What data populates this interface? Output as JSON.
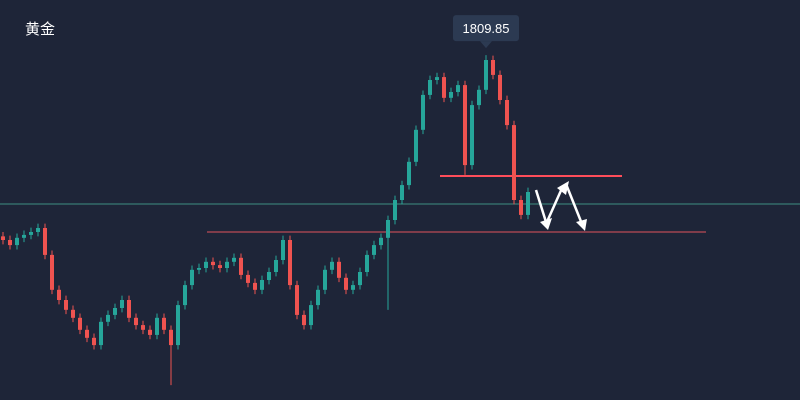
{
  "chart_data": {
    "type": "candlestick",
    "title": "黄金",
    "open": [
      1760.0,
      1759.0,
      1757.6,
      1759.6,
      1760.4,
      1761.2,
      1762.3,
      1754.9,
      1745.3,
      1742.5,
      1739.8,
      1737.6,
      1734.3,
      1732.1,
      1730.1,
      1736.5,
      1738.4,
      1740.3,
      1742.5,
      1737.6,
      1735.6,
      1734.3,
      1732.9,
      1737.6,
      1734.3,
      1730.1,
      1741.1,
      1746.6,
      1750.8,
      1751.3,
      1753.0,
      1752.1,
      1751.3,
      1753.0,
      1754.1,
      1749.4,
      1747.2,
      1745.3,
      1748.0,
      1750.2,
      1753.5,
      1759.0,
      1746.6,
      1738.4,
      1735.6,
      1741.1,
      1745.3,
      1750.8,
      1753.0,
      1748.6,
      1745.3,
      1746.6,
      1750.2,
      1754.9,
      1757.6,
      1759.6,
      1764.5,
      1770.0,
      1774.1,
      1780.5,
      1789.3,
      1798.9,
      1803.0,
      1803.8,
      1798.1,
      1799.7,
      1801.6,
      1779.6,
      1796.1,
      1800.3,
      1808.5,
      1804.4,
      1797.5,
      1790.6,
      1770.0,
      1765.9
    ],
    "high": [
      1761.2,
      1760.2,
      1760.8,
      1761.6,
      1762.4,
      1763.5,
      1763.5,
      1756.1,
      1746.5,
      1743.7,
      1741.0,
      1738.8,
      1735.5,
      1733.3,
      1737.7,
      1739.6,
      1741.5,
      1743.7,
      1743.7,
      1738.8,
      1736.8,
      1735.5,
      1738.8,
      1738.8,
      1735.5,
      1742.3,
      1747.8,
      1752.0,
      1752.5,
      1754.2,
      1754.2,
      1753.3,
      1754.2,
      1755.3,
      1755.3,
      1750.6,
      1748.4,
      1749.2,
      1751.4,
      1754.7,
      1760.2,
      1760.2,
      1747.8,
      1739.6,
      1742.3,
      1746.5,
      1752.0,
      1754.2,
      1754.2,
      1749.8,
      1747.8,
      1751.4,
      1756.1,
      1758.8,
      1760.8,
      1765.7,
      1771.2,
      1775.3,
      1781.7,
      1790.5,
      1800.1,
      1804.2,
      1805.0,
      1805.0,
      1800.9,
      1802.8,
      1802.8,
      1797.3,
      1801.5,
      1809.85,
      1809.7,
      1805.6,
      1798.7,
      1791.8,
      1771.2,
      1773.4
    ],
    "low": [
      1757.8,
      1756.4,
      1756.4,
      1758.4,
      1759.2,
      1760.0,
      1753.7,
      1744.1,
      1741.3,
      1738.6,
      1736.4,
      1733.1,
      1730.9,
      1728.9,
      1728.9,
      1735.3,
      1737.2,
      1739.1,
      1736.4,
      1734.4,
      1733.1,
      1731.7,
      1731.7,
      1733.1,
      1719.1,
      1728.9,
      1739.9,
      1745.4,
      1749.6,
      1750.1,
      1750.9,
      1750.1,
      1750.1,
      1751.8,
      1748.2,
      1746.0,
      1744.1,
      1744.1,
      1746.8,
      1749.0,
      1752.3,
      1745.4,
      1737.2,
      1734.4,
      1734.4,
      1739.9,
      1744.1,
      1749.6,
      1747.4,
      1744.1,
      1744.1,
      1745.4,
      1749.0,
      1753.7,
      1756.4,
      1739.8,
      1763.3,
      1768.8,
      1772.9,
      1779.3,
      1788.1,
      1797.7,
      1801.8,
      1796.9,
      1796.9,
      1798.5,
      1776.9,
      1778.4,
      1794.9,
      1799.1,
      1803.2,
      1796.3,
      1789.4,
      1768.8,
      1764.7,
      1764.7
    ],
    "close": [
      1759.0,
      1757.6,
      1759.6,
      1760.4,
      1761.2,
      1762.3,
      1754.9,
      1745.3,
      1742.5,
      1739.8,
      1737.6,
      1734.3,
      1732.1,
      1730.1,
      1736.5,
      1738.4,
      1740.3,
      1742.5,
      1737.6,
      1735.6,
      1734.3,
      1732.9,
      1737.6,
      1734.3,
      1730.1,
      1741.1,
      1746.6,
      1750.8,
      1751.3,
      1753.0,
      1752.1,
      1751.3,
      1753.0,
      1754.1,
      1749.4,
      1747.2,
      1745.3,
      1748.0,
      1750.2,
      1753.5,
      1759.0,
      1746.6,
      1738.4,
      1735.6,
      1741.1,
      1745.3,
      1750.8,
      1753.0,
      1748.6,
      1745.3,
      1746.6,
      1750.2,
      1754.9,
      1757.6,
      1759.6,
      1764.5,
      1770.0,
      1774.1,
      1780.5,
      1789.3,
      1798.9,
      1803.0,
      1803.8,
      1798.1,
      1799.7,
      1801.6,
      1779.6,
      1796.1,
      1800.3,
      1808.5,
      1804.4,
      1797.5,
      1790.6,
      1770.0,
      1765.9,
      1772.2
    ],
    "up_color": "#26a69a",
    "down_color": "#ef5350",
    "ylim": [
      1715,
      1825
    ],
    "levels": [
      {
        "value": 1776.6,
        "color": "#ff4d5a"
      },
      {
        "value": 1761.2,
        "color": "#e0525c"
      }
    ],
    "current_price": {
      "value": 1768.9,
      "color": "#3f8f82"
    }
  }
}
